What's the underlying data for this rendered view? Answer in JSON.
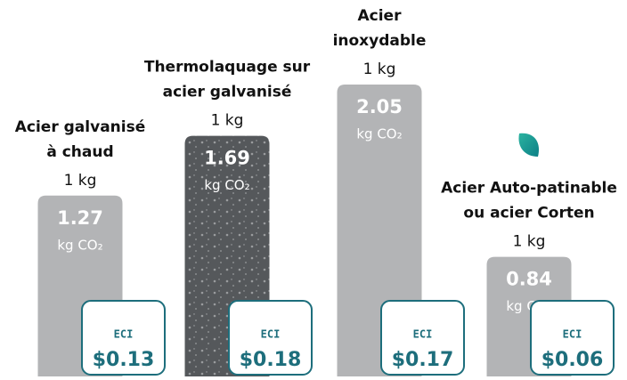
{
  "chart_data": {
    "type": "bar",
    "categories": [
      [
        "Acier galvanisé",
        "à chaud"
      ],
      [
        "Thermolaquage sur",
        "acier galvanisé"
      ],
      [
        "Acier",
        "inoxydable"
      ],
      [
        "Acier Auto-patinable",
        "ou acier Corten"
      ]
    ],
    "quantity": "1 kg",
    "values": [
      1.27,
      1.69,
      2.05,
      0.84
    ],
    "unit": "kg CO₂",
    "colors": [
      "#b3b4b6",
      "#55585b",
      "#b3b4b6",
      "#b3b4b6"
    ],
    "eci_label": "ECI",
    "eci_values": [
      0.13,
      0.18,
      0.17,
      0.06
    ],
    "eci_value_labels": [
      "$0.13",
      "$0.18",
      "$0.17",
      "$0.06"
    ],
    "eci_color": "#1d6e7c"
  }
}
